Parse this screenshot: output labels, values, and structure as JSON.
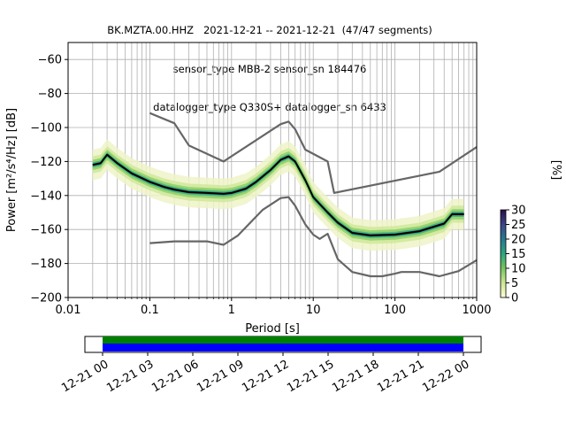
{
  "title_lines": [
    "BK.MZTA.00.HHZ   2021-12-21 -- 2021-12-21  (47/47 segments)",
    "sensor_type MBB-2 sensor_sn 184476",
    "datalogger_type Q330S+ datalogger_sn 6433"
  ],
  "chart_data": {
    "type": "line",
    "xlabel": "Period [s]",
    "ylabel": "Power [m²/s⁴/Hz] [dB]",
    "x_scale": "log",
    "xlim": [
      0.01,
      1000
    ],
    "ylim": [
      -200,
      -50
    ],
    "x_ticks": [
      0.01,
      0.1,
      1,
      10,
      100,
      1000
    ],
    "x_tick_labels": [
      "0.01",
      "0.1",
      "1",
      "10",
      "100",
      "1000"
    ],
    "y_ticks": [
      -200,
      -180,
      -160,
      -140,
      -120,
      -100,
      -80,
      -60
    ],
    "y_tick_labels": [
      "−200",
      "−180",
      "−160",
      "−140",
      "−120",
      "−100",
      "−80",
      "−60"
    ],
    "grid": true,
    "series": [
      {
        "name": "",
        "color": "#666666",
        "x": [
          0.1,
          0.2,
          0.3,
          0.8,
          4,
          5,
          6,
          8,
          15,
          18,
          350,
          1000
        ],
        "y": [
          -91.5,
          -97.5,
          -110.5,
          -120,
          -98,
          -96.5,
          -101,
          -113,
          -120,
          -138.5,
          -126,
          -111.5
        ]
      },
      {
        "name": "",
        "color": "#666666",
        "x": [
          0.1,
          0.2,
          0.5,
          0.8,
          1.2,
          2.4,
          4,
          5,
          6,
          8,
          10,
          12,
          15,
          20,
          30,
          50,
          70,
          100,
          120,
          200,
          350,
          600,
          1000
        ],
        "y": [
          -168,
          -167,
          -167,
          -169,
          -163.5,
          -148.5,
          -141.5,
          -141,
          -146,
          -157,
          -163,
          -165.5,
          -162.5,
          -177.5,
          -185,
          -187.5,
          -187.5,
          -186,
          -185,
          -185,
          -187.5,
          -184.5,
          -178
        ]
      },
      {
        "name": "",
        "color": "#000000",
        "x": [
          0.02,
          0.025,
          0.03,
          0.04,
          0.06,
          0.1,
          0.15,
          0.2,
          0.3,
          0.5,
          0.8,
          1,
          1.5,
          2,
          3,
          4,
          5,
          6,
          8,
          10,
          15,
          20,
          30,
          50,
          100,
          200,
          400,
          500,
          700
        ],
        "y": [
          -122,
          -121,
          -116,
          -121,
          -127,
          -132,
          -135,
          -136.5,
          -138,
          -138.5,
          -139,
          -138.5,
          -136,
          -132,
          -125,
          -119,
          -117,
          -120,
          -131,
          -141,
          -150,
          -156,
          -162,
          -163.5,
          -163,
          -161,
          -156.5,
          -151,
          -151
        ]
      }
    ],
    "colorbar": {
      "label": "[%]",
      "min": 0,
      "max": 30,
      "ticks": [
        0,
        5,
        10,
        15,
        20,
        25,
        30
      ],
      "tick_labels": [
        "0",
        "5",
        "10",
        "15",
        "20",
        "25",
        "30"
      ]
    }
  },
  "timeline": {
    "tick_labels": [
      "12-21 00",
      "12-21 03",
      "12-21 06",
      "12-21 09",
      "12-21 12",
      "12-21 15",
      "12-21 18",
      "12-21 21",
      "12-22 00"
    ],
    "bar_colors": [
      "#008000",
      "#0000ff"
    ]
  }
}
